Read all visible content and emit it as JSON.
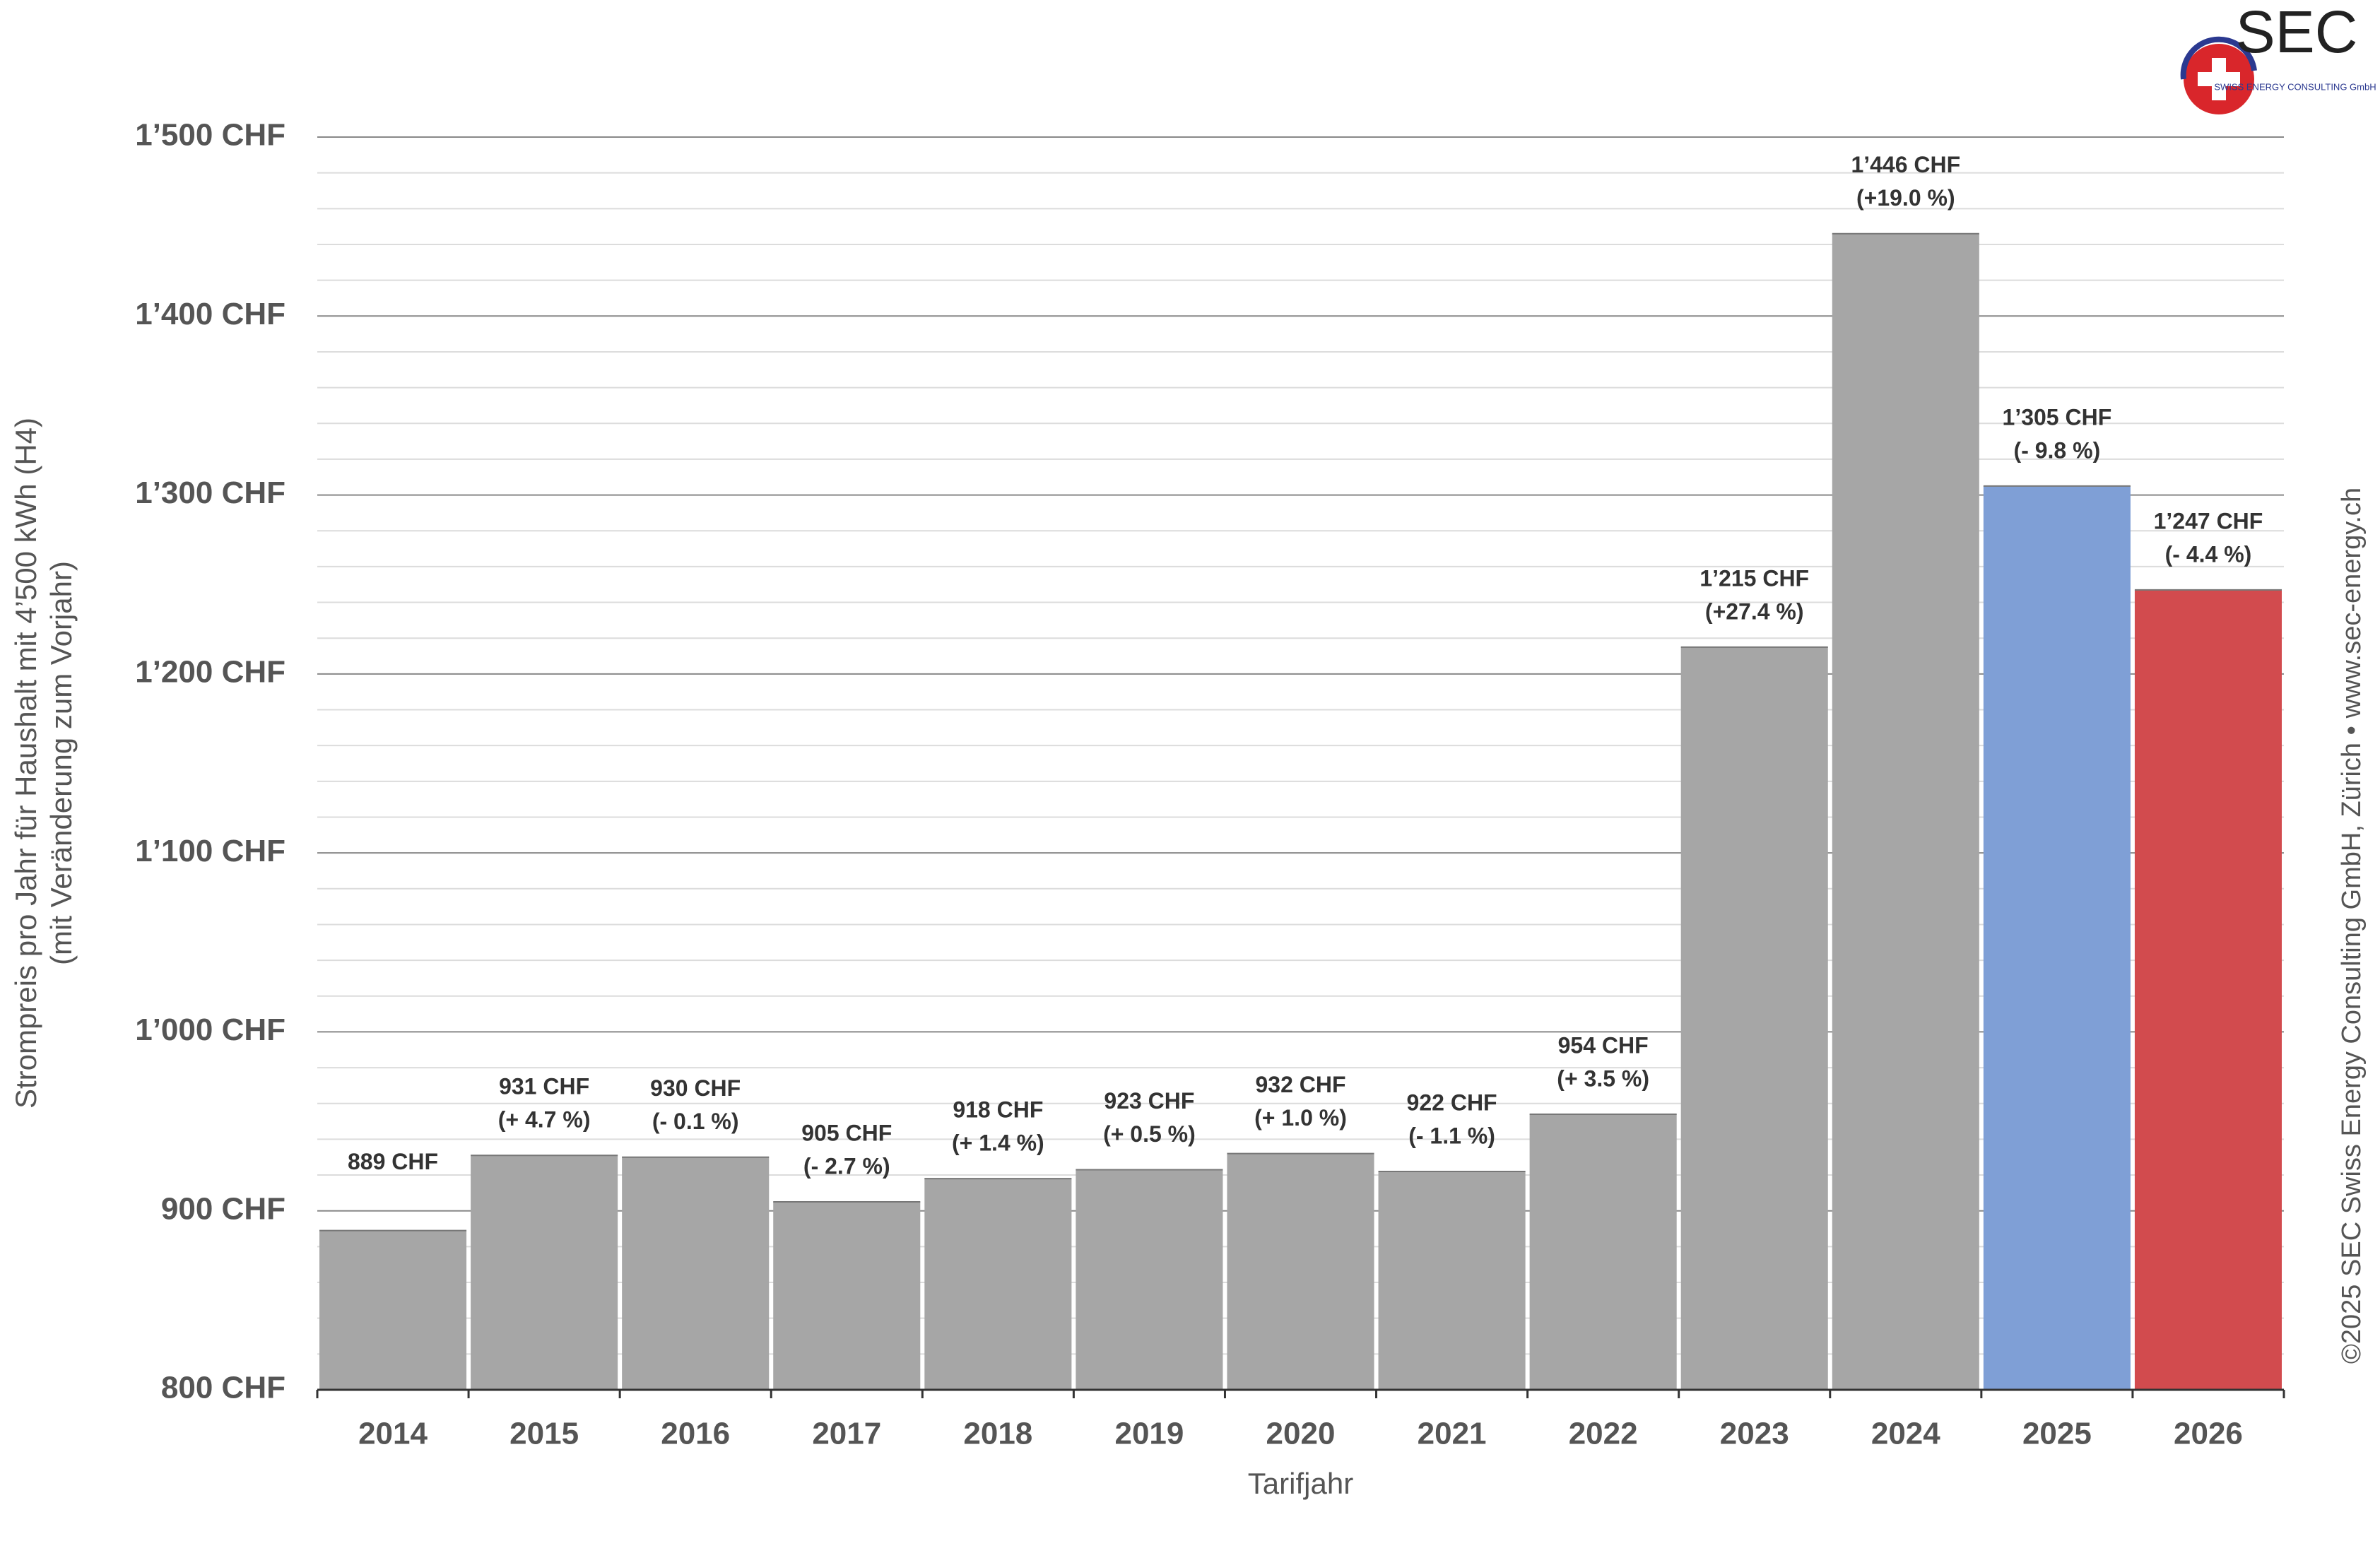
{
  "chart_data": {
    "type": "bar",
    "ylabel": [
      "Strompreis pro Jahr für Haushalt mit 4’500 kWh (H4)",
      "(mit Veränderung zum Vorjahr)"
    ],
    "xlabel": "Tarifjahr",
    "categories": [
      "2014",
      "2015",
      "2016",
      "2017",
      "2018",
      "2019",
      "2020",
      "2021",
      "2022",
      "2023",
      "2024",
      "2025",
      "2026"
    ],
    "values": [
      889,
      931,
      930,
      905,
      918,
      923,
      932,
      922,
      954,
      1215,
      1446,
      1305,
      1247
    ],
    "value_labels": [
      "889 CHF",
      "931 CHF",
      "930 CHF",
      "905 CHF",
      "918 CHF",
      "923 CHF",
      "932 CHF",
      "922 CHF",
      "954 CHF",
      "1’215 CHF",
      "1’446 CHF",
      "1’305 CHF",
      "1’247 CHF"
    ],
    "changes": [
      null,
      "(+ 4.7 %)",
      "(- 0.1 %)",
      "(- 2.7 %)",
      "(+ 1.4 %)",
      "(+ 0.5 %)",
      "(+ 1.0 %)",
      "(- 1.1 %)",
      "(+ 3.5 %)",
      "(+27.4 %)",
      "(+19.0 %)",
      "(- 9.8 %)",
      "(- 4.4 %)"
    ],
    "colors": [
      "#a6a6a6",
      "#a6a6a6",
      "#a6a6a6",
      "#a6a6a6",
      "#a6a6a6",
      "#a6a6a6",
      "#a6a6a6",
      "#a6a6a6",
      "#a6a6a6",
      "#a6a6a6",
      "#a6a6a6",
      "#7f9fd6",
      "#d24b4e"
    ],
    "ylim": [
      800,
      1500
    ],
    "yticks": [
      {
        "value": 800,
        "label": "800 CHF"
      },
      {
        "value": 900,
        "label": "900 CHF"
      },
      {
        "value": 1000,
        "label": "1’000 CHF"
      },
      {
        "value": 1100,
        "label": "1’100 CHF"
      },
      {
        "value": 1200,
        "label": "1’200 CHF"
      },
      {
        "value": 1300,
        "label": "1’300 CHF"
      },
      {
        "value": 1400,
        "label": "1’400 CHF"
      },
      {
        "value": 1500,
        "label": "1’500 CHF"
      }
    ],
    "yminor_ticks": [
      820,
      840,
      860,
      880,
      920,
      940,
      960,
      980,
      1020,
      1040,
      1060,
      1080,
      1120,
      1140,
      1160,
      1180,
      1220,
      1240,
      1260,
      1280,
      1320,
      1340,
      1360,
      1380,
      1420,
      1440,
      1460,
      1480
    ],
    "grid": true,
    "credit": "©2025 SEC Swiss Energy Consulting GmbH, Zürich • www.sec-energy.ch",
    "logo": {
      "name": "SEC",
      "sub": "SWISS ENERGY CONSULTING GmbH"
    }
  }
}
